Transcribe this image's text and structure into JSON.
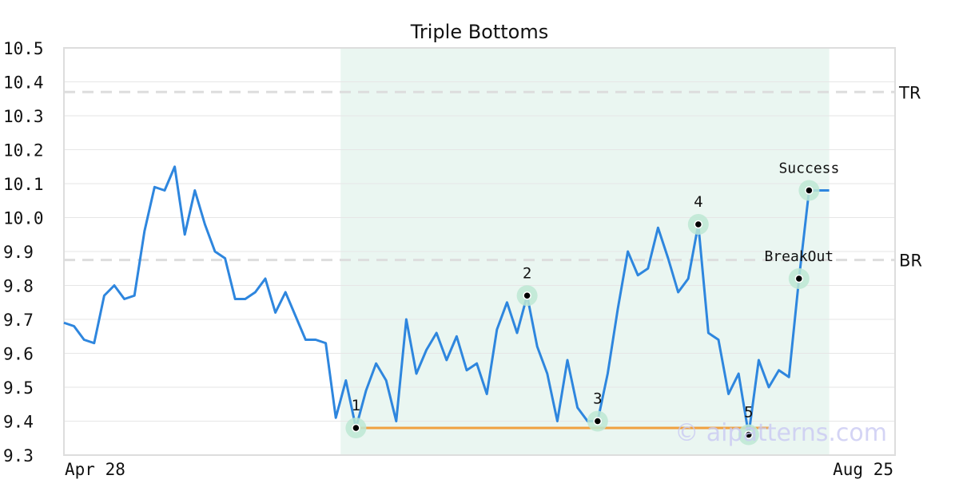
{
  "chart_data": {
    "type": "line",
    "title": "Triple Bottoms",
    "ylim": [
      9.3,
      10.5
    ],
    "y_ticks": [
      "10.5",
      "10.4",
      "10.3",
      "10.2",
      "10.1",
      "10.0",
      "9.9",
      "9.8",
      "9.7",
      "9.6",
      "9.5",
      "9.4",
      "9.3"
    ],
    "x_tick_labels": [
      "Apr 28",
      "Aug 25"
    ],
    "grid": true,
    "series": [
      {
        "values": [
          9.69,
          9.68,
          9.64,
          9.63,
          9.77,
          9.8,
          9.76,
          9.77,
          9.96,
          10.09,
          10.08,
          10.15,
          9.95,
          10.08,
          9.98,
          9.9,
          9.88,
          9.76,
          9.76,
          9.78,
          9.82,
          9.72,
          9.78,
          9.71,
          9.64,
          9.64,
          9.63,
          9.41,
          9.52,
          9.38,
          9.49,
          9.57,
          9.52,
          9.4,
          9.7,
          9.54,
          9.61,
          9.66,
          9.58,
          9.65,
          9.55,
          9.57,
          9.48,
          9.67,
          9.75,
          9.66,
          9.77,
          9.62,
          9.54,
          9.4,
          9.58,
          9.44,
          9.4,
          9.4,
          9.54,
          9.73,
          9.9,
          9.83,
          9.85,
          9.97,
          9.88,
          9.78,
          9.82,
          9.98,
          9.66,
          9.64,
          9.48,
          9.54,
          9.36,
          9.58,
          9.5,
          9.55,
          9.53,
          9.82,
          10.08,
          10.08,
          10.08
        ],
        "color": "#2e86de"
      }
    ],
    "pattern_region": {
      "start_index": 27,
      "end_index": 76,
      "color": "#eaf6f1"
    },
    "reference_lines": [
      {
        "label": "TR",
        "value": 10.37,
        "color": "#dddddd"
      },
      {
        "label": "BR",
        "value": 9.875,
        "color": "#dddddd"
      }
    ],
    "support_line": {
      "value": 9.38,
      "start_index": 29,
      "end_index": 70,
      "color": "#f0a040"
    },
    "points": [
      {
        "label": "1",
        "index": 29,
        "value": 9.38
      },
      {
        "label": "2",
        "index": 46,
        "value": 9.77
      },
      {
        "label": "3",
        "index": 53,
        "value": 9.4
      },
      {
        "label": "4",
        "index": 63,
        "value": 9.98
      },
      {
        "label": "5",
        "index": 68,
        "value": 9.36
      },
      {
        "label": "BreakOut",
        "index": 73,
        "value": 9.82
      },
      {
        "label": "Success",
        "index": 74,
        "value": 10.08
      }
    ],
    "marker_color": "#bde8d4"
  },
  "watermark": "© aipatterns.com"
}
